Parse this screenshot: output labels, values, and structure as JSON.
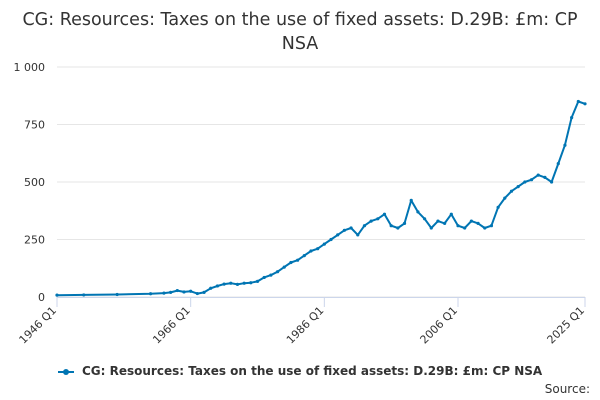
{
  "chart_data": {
    "type": "line",
    "title": "CG: Resources: Taxes on the use of fixed assets: D.29B: £m: CP NSA",
    "xlabel": "",
    "ylabel": "",
    "x_ticks": [
      "1946 Q1",
      "1966 Q1",
      "1986 Q1",
      "2006 Q1",
      "2025 Q1"
    ],
    "y_ticks": [
      "0",
      "250",
      "500",
      "750",
      "1 000"
    ],
    "ylim": [
      0,
      1000
    ],
    "xlim": [
      1946,
      2025
    ],
    "grid": true,
    "legend": "bottom",
    "series": [
      {
        "name": "CG: Resources: Taxes on the use of fixed assets: D.29B: £m: CP NSA",
        "color": "#0075b3",
        "points": [
          [
            1946,
            8
          ],
          [
            1950,
            9
          ],
          [
            1955,
            11
          ],
          [
            1960,
            14
          ],
          [
            1962,
            17
          ],
          [
            1963,
            20
          ],
          [
            1964,
            28
          ],
          [
            1965,
            22
          ],
          [
            1966,
            25
          ],
          [
            1967,
            15
          ],
          [
            1968,
            20
          ],
          [
            1969,
            38
          ],
          [
            1970,
            48
          ],
          [
            1971,
            56
          ],
          [
            1972,
            60
          ],
          [
            1973,
            55
          ],
          [
            1974,
            60
          ],
          [
            1975,
            62
          ],
          [
            1976,
            68
          ],
          [
            1977,
            85
          ],
          [
            1978,
            95
          ],
          [
            1979,
            110
          ],
          [
            1980,
            130
          ],
          [
            1981,
            150
          ],
          [
            1982,
            160
          ],
          [
            1983,
            180
          ],
          [
            1984,
            200
          ],
          [
            1985,
            210
          ],
          [
            1986,
            230
          ],
          [
            1987,
            250
          ],
          [
            1988,
            270
          ],
          [
            1989,
            290
          ],
          [
            1990,
            300
          ],
          [
            1991,
            270
          ],
          [
            1992,
            310
          ],
          [
            1993,
            330
          ],
          [
            1994,
            340
          ],
          [
            1995,
            360
          ],
          [
            1996,
            310
          ],
          [
            1997,
            300
          ],
          [
            1998,
            320
          ],
          [
            1999,
            420
          ],
          [
            2000,
            370
          ],
          [
            2001,
            340
          ],
          [
            2002,
            300
          ],
          [
            2003,
            330
          ],
          [
            2004,
            320
          ],
          [
            2005,
            360
          ],
          [
            2006,
            310
          ],
          [
            2007,
            300
          ],
          [
            2008,
            330
          ],
          [
            2009,
            320
          ],
          [
            2010,
            300
          ],
          [
            2011,
            310
          ],
          [
            2012,
            390
          ],
          [
            2013,
            430
          ],
          [
            2014,
            460
          ],
          [
            2015,
            480
          ],
          [
            2016,
            500
          ],
          [
            2017,
            510
          ],
          [
            2018,
            530
          ],
          [
            2019,
            520
          ],
          [
            2020,
            500
          ],
          [
            2021,
            580
          ],
          [
            2022,
            660
          ],
          [
            2023,
            780
          ],
          [
            2024,
            850
          ],
          [
            2025,
            840
          ]
        ]
      }
    ]
  },
  "source_label": "Source:"
}
